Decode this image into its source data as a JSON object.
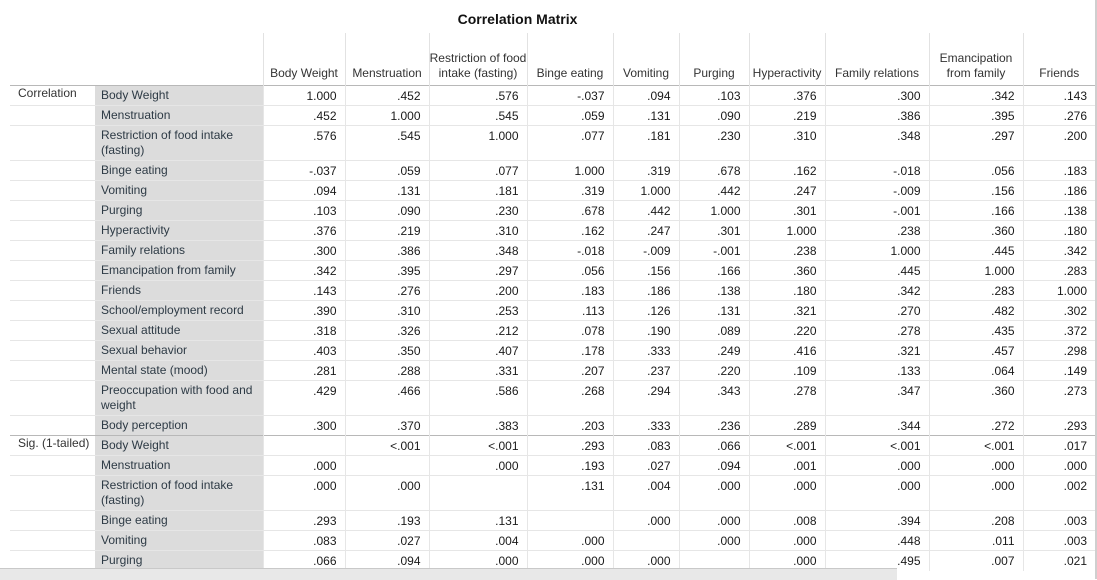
{
  "title": "Correlation Matrix",
  "columns": [
    "Body Weight",
    "Menstruation",
    "Restriction of food intake (fasting)",
    "Binge eating",
    "Vomiting",
    "Purging",
    "Hyperactivity",
    "Family relations",
    "Emancipation from family",
    "Friends"
  ],
  "sections": [
    {
      "name": "Correlation",
      "rows": [
        {
          "label": "Body Weight",
          "values": [
            "1.000",
            ".452",
            ".576",
            "-.037",
            ".094",
            ".103",
            ".376",
            ".300",
            ".342",
            ".143"
          ]
        },
        {
          "label": "Menstruation",
          "values": [
            ".452",
            "1.000",
            ".545",
            ".059",
            ".131",
            ".090",
            ".219",
            ".386",
            ".395",
            ".276"
          ]
        },
        {
          "label": "Restriction of food intake (fasting)",
          "values": [
            ".576",
            ".545",
            "1.000",
            ".077",
            ".181",
            ".230",
            ".310",
            ".348",
            ".297",
            ".200"
          ]
        },
        {
          "label": "Binge eating",
          "values": [
            "-.037",
            ".059",
            ".077",
            "1.000",
            ".319",
            ".678",
            ".162",
            "-.018",
            ".056",
            ".183"
          ]
        },
        {
          "label": "Vomiting",
          "values": [
            ".094",
            ".131",
            ".181",
            ".319",
            "1.000",
            ".442",
            ".247",
            "-.009",
            ".156",
            ".186"
          ]
        },
        {
          "label": "Purging",
          "values": [
            ".103",
            ".090",
            ".230",
            ".678",
            ".442",
            "1.000",
            ".301",
            "-.001",
            ".166",
            ".138"
          ]
        },
        {
          "label": "Hyperactivity",
          "values": [
            ".376",
            ".219",
            ".310",
            ".162",
            ".247",
            ".301",
            "1.000",
            ".238",
            ".360",
            ".180"
          ]
        },
        {
          "label": "Family relations",
          "values": [
            ".300",
            ".386",
            ".348",
            "-.018",
            "-.009",
            "-.001",
            ".238",
            "1.000",
            ".445",
            ".342"
          ]
        },
        {
          "label": "Emancipation from family",
          "values": [
            ".342",
            ".395",
            ".297",
            ".056",
            ".156",
            ".166",
            ".360",
            ".445",
            "1.000",
            ".283"
          ]
        },
        {
          "label": "Friends",
          "values": [
            ".143",
            ".276",
            ".200",
            ".183",
            ".186",
            ".138",
            ".180",
            ".342",
            ".283",
            "1.000"
          ]
        },
        {
          "label": "School/employment record",
          "values": [
            ".390",
            ".310",
            ".253",
            ".113",
            ".126",
            ".131",
            ".321",
            ".270",
            ".482",
            ".302"
          ]
        },
        {
          "label": "Sexual attitude",
          "values": [
            ".318",
            ".326",
            ".212",
            ".078",
            ".190",
            ".089",
            ".220",
            ".278",
            ".435",
            ".372"
          ]
        },
        {
          "label": "Sexual behavior",
          "values": [
            ".403",
            ".350",
            ".407",
            ".178",
            ".333",
            ".249",
            ".416",
            ".321",
            ".457",
            ".298"
          ]
        },
        {
          "label": "Mental state (mood)",
          "values": [
            ".281",
            ".288",
            ".331",
            ".207",
            ".237",
            ".220",
            ".109",
            ".133",
            ".064",
            ".149"
          ]
        },
        {
          "label": "Preoccupation with food and weight",
          "values": [
            ".429",
            ".466",
            ".586",
            ".268",
            ".294",
            ".343",
            ".278",
            ".347",
            ".360",
            ".273"
          ]
        },
        {
          "label": "Body perception",
          "values": [
            ".300",
            ".370",
            ".383",
            ".203",
            ".333",
            ".236",
            ".289",
            ".344",
            ".272",
            ".293"
          ]
        }
      ]
    },
    {
      "name": "Sig. (1-tailed)",
      "rows": [
        {
          "label": "Body Weight",
          "values": [
            "",
            "<.001",
            "<.001",
            ".293",
            ".083",
            ".066",
            "<.001",
            "<.001",
            "<.001",
            ".017"
          ]
        },
        {
          "label": "Menstruation",
          "values": [
            ".000",
            "",
            ".000",
            ".193",
            ".027",
            ".094",
            ".001",
            ".000",
            ".000",
            ".000"
          ]
        },
        {
          "label": "Restriction of food intake (fasting)",
          "values": [
            ".000",
            ".000",
            "",
            ".131",
            ".004",
            ".000",
            ".000",
            ".000",
            ".000",
            ".002"
          ]
        },
        {
          "label": "Binge eating",
          "values": [
            ".293",
            ".193",
            ".131",
            "",
            ".000",
            ".000",
            ".008",
            ".394",
            ".208",
            ".003"
          ]
        },
        {
          "label": "Vomiting",
          "values": [
            ".083",
            ".027",
            ".004",
            ".000",
            "",
            ".000",
            ".000",
            ".448",
            ".011",
            ".003"
          ]
        },
        {
          "label": "Purging",
          "values": [
            ".066",
            ".094",
            ".000",
            ".000",
            ".000",
            "",
            ".000",
            ".495",
            ".007",
            ".021"
          ]
        }
      ]
    }
  ]
}
